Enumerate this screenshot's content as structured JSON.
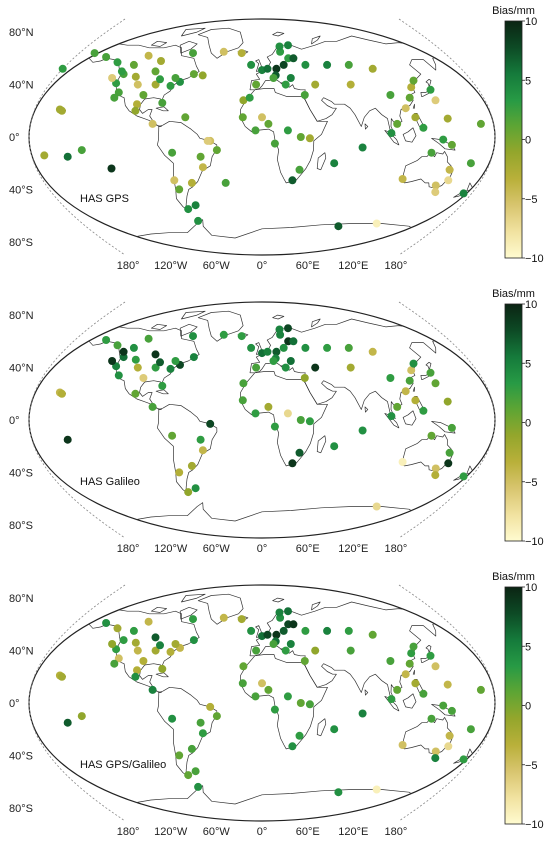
{
  "colorbar": {
    "title": "Bias/mm",
    "ticks": [
      "10",
      "5",
      "0",
      "−5",
      "−10"
    ],
    "min": -10,
    "max": 10,
    "stops": [
      "#fffbd0",
      "#f1e2a0",
      "#d8c56f",
      "#b9b03a",
      "#94a62c",
      "#5ea534",
      "#279a45",
      "#157a3b",
      "#0d4a25",
      "#0b2413"
    ]
  },
  "axis_labels": {
    "lat": [
      "80°N",
      "40°N",
      "0°",
      "40°S",
      "80°S"
    ],
    "lon": [
      "180°",
      "120°W",
      "60°W",
      "0°",
      "60°E",
      "120°E",
      "180°"
    ]
  },
  "panels": [
    {
      "label": "HAS GPS",
      "stations": [
        [
          -160,
          21,
          -2
        ],
        [
          -152,
          -15,
          6
        ],
        [
          -120,
          -24,
          9
        ],
        [
          -158,
          20,
          -2
        ],
        [
          -122,
          48,
          2
        ],
        [
          -118,
          34,
          2
        ],
        [
          -124,
          41,
          3
        ],
        [
          -110,
          46,
          -2
        ],
        [
          -97,
          32,
          1
        ],
        [
          -105,
          40,
          -5
        ],
        [
          -90,
          40,
          -2
        ],
        [
          -80,
          26,
          2
        ],
        [
          -77,
          39,
          3
        ],
        [
          -70,
          42,
          4
        ],
        [
          -88,
          44,
          3
        ],
        [
          -75,
          45,
          2
        ],
        [
          -95,
          50,
          1
        ],
        [
          -135,
          57,
          3
        ],
        [
          -150,
          61,
          2
        ],
        [
          -165,
          64,
          2
        ],
        [
          -110,
          62,
          -4
        ],
        [
          -95,
          58,
          -2
        ],
        [
          -68,
          64,
          2
        ],
        [
          -60,
          48,
          1
        ],
        [
          -52,
          47,
          -1
        ],
        [
          -118,
          55,
          1
        ],
        [
          -125,
          50,
          3
        ],
        [
          -130,
          45,
          -6
        ],
        [
          -100,
          25,
          -3
        ],
        [
          -100,
          20,
          -1
        ],
        [
          -85,
          10,
          -5
        ],
        [
          -60,
          15,
          1
        ],
        [
          -70,
          -12,
          2
        ],
        [
          -48,
          -15,
          1
        ],
        [
          -47,
          -23,
          -4
        ],
        [
          -58,
          -35,
          -3
        ],
        [
          -72,
          -33,
          -5
        ],
        [
          -70,
          -40,
          1
        ],
        [
          -60,
          -52,
          5
        ],
        [
          -68,
          -55,
          4
        ],
        [
          -40,
          -3,
          -5
        ],
        [
          -30,
          -35,
          2
        ],
        [
          -20,
          64,
          -3
        ],
        [
          -38,
          65,
          -5
        ],
        [
          -10,
          55,
          4
        ],
        [
          0,
          51,
          5
        ],
        [
          5,
          52,
          6
        ],
        [
          13,
          52,
          9
        ],
        [
          12,
          47,
          7
        ],
        [
          20,
          55,
          8
        ],
        [
          25,
          60,
          3
        ],
        [
          30,
          60,
          7
        ],
        [
          18,
          65,
          3
        ],
        [
          27,
          70,
          5
        ],
        [
          18,
          69,
          4
        ],
        [
          -5,
          40,
          1
        ],
        [
          -15,
          28,
          -1
        ],
        [
          10,
          45,
          2
        ],
        [
          20,
          40,
          3
        ],
        [
          25,
          45,
          5
        ],
        [
          40,
          55,
          4
        ],
        [
          60,
          55,
          5
        ],
        [
          35,
          32,
          2
        ],
        [
          45,
          40,
          -2
        ],
        [
          75,
          40,
          -3
        ],
        [
          80,
          55,
          2
        ],
        [
          100,
          52,
          -2
        ],
        [
          105,
          32,
          2
        ],
        [
          120,
          30,
          1
        ],
        [
          125,
          38,
          -3
        ],
        [
          130,
          43,
          1
        ],
        [
          140,
          36,
          3
        ],
        [
          140,
          28,
          -6
        ],
        [
          114,
          22,
          -5
        ],
        [
          120,
          15,
          -2
        ],
        [
          105,
          10,
          1
        ],
        [
          100,
          3,
          4
        ],
        [
          125,
          7,
          3
        ],
        [
          145,
          14,
          -2
        ],
        [
          147,
          -6,
          1
        ],
        [
          30,
          0,
          1
        ],
        [
          37,
          -1,
          -2
        ],
        [
          20,
          5,
          3
        ],
        [
          5,
          10,
          1
        ],
        [
          -5,
          5,
          2
        ],
        [
          -15,
          15,
          1
        ],
        [
          10,
          -5,
          2
        ],
        [
          30,
          -25,
          2
        ],
        [
          25,
          -33,
          7
        ],
        [
          57,
          -20,
          5
        ],
        [
          78,
          -8,
          5
        ],
        [
          115,
          -32,
          -4
        ],
        [
          132,
          -12,
          2
        ],
        [
          150,
          -25,
          -4
        ],
        [
          145,
          -37,
          -5
        ],
        [
          153,
          -33,
          -7
        ],
        [
          148,
          -42,
          -6
        ],
        [
          173,
          -43,
          5
        ],
        [
          -170,
          -14,
          -2
        ],
        [
          115,
          -66,
          -9
        ],
        [
          78,
          -68,
          7
        ],
        [
          -63,
          -64,
          4
        ],
        [
          0,
          15,
          -5
        ],
        [
          -35,
          -10,
          1
        ],
        [
          165,
          -20,
          2
        ],
        [
          140,
          -2,
          3
        ],
        [
          -42,
          -3,
          -6
        ],
        [
          -10,
          30,
          3
        ],
        [
          -120,
          30,
          2
        ],
        [
          -180,
          52,
          3
        ],
        [
          170,
          10,
          1
        ],
        [
          -140,
          -10,
          2
        ]
      ]
    },
    {
      "label": "HAS Galileo",
      "stations": [
        [
          -160,
          21,
          -4
        ],
        [
          -152,
          -15,
          9
        ],
        [
          -158,
          20,
          -3
        ],
        [
          -122,
          48,
          6
        ],
        [
          -124,
          41,
          5
        ],
        [
          -118,
          34,
          4
        ],
        [
          -110,
          46,
          3
        ],
        [
          -105,
          40,
          -3
        ],
        [
          -97,
          32,
          -6
        ],
        [
          -90,
          40,
          3
        ],
        [
          -80,
          26,
          3
        ],
        [
          -77,
          39,
          5
        ],
        [
          -70,
          42,
          8
        ],
        [
          -88,
          44,
          7
        ],
        [
          -95,
          50,
          9
        ],
        [
          -75,
          45,
          3
        ],
        [
          -135,
          57,
          2
        ],
        [
          -150,
          61,
          3
        ],
        [
          -110,
          62,
          2
        ],
        [
          -68,
          64,
          4
        ],
        [
          -60,
          48,
          5
        ],
        [
          -118,
          55,
          4
        ],
        [
          -130,
          45,
          9
        ],
        [
          -125,
          52,
          9
        ],
        [
          -100,
          20,
          1
        ],
        [
          -85,
          10,
          2
        ],
        [
          -70,
          -12,
          1
        ],
        [
          -48,
          -15,
          3
        ],
        [
          -47,
          -23,
          -4
        ],
        [
          -58,
          -35,
          -2
        ],
        [
          -70,
          -40,
          -3
        ],
        [
          -60,
          -52,
          4
        ],
        [
          -68,
          -55,
          -1
        ],
        [
          -40,
          -3,
          8
        ],
        [
          -20,
          64,
          3
        ],
        [
          -38,
          65,
          3
        ],
        [
          -10,
          55,
          4
        ],
        [
          0,
          51,
          6
        ],
        [
          5,
          52,
          5
        ],
        [
          13,
          52,
          7
        ],
        [
          12,
          47,
          5
        ],
        [
          20,
          55,
          4
        ],
        [
          25,
          60,
          9
        ],
        [
          30,
          60,
          6
        ],
        [
          18,
          65,
          5
        ],
        [
          27,
          70,
          8
        ],
        [
          18,
          69,
          5
        ],
        [
          -5,
          40,
          2
        ],
        [
          -15,
          28,
          2
        ],
        [
          10,
          45,
          3
        ],
        [
          20,
          40,
          4
        ],
        [
          25,
          45,
          6
        ],
        [
          40,
          55,
          4
        ],
        [
          60,
          55,
          3
        ],
        [
          35,
          32,
          -1
        ],
        [
          45,
          40,
          9
        ],
        [
          75,
          40,
          -2
        ],
        [
          80,
          55,
          2
        ],
        [
          100,
          52,
          -4
        ],
        [
          105,
          32,
          3
        ],
        [
          120,
          30,
          2
        ],
        [
          125,
          38,
          -5
        ],
        [
          130,
          43,
          4
        ],
        [
          140,
          36,
          2
        ],
        [
          140,
          28,
          1
        ],
        [
          114,
          22,
          -4
        ],
        [
          120,
          15,
          -3
        ],
        [
          105,
          10,
          1
        ],
        [
          100,
          3,
          4
        ],
        [
          125,
          7,
          3
        ],
        [
          145,
          14,
          -1
        ],
        [
          147,
          -6,
          2
        ],
        [
          30,
          0,
          2
        ],
        [
          37,
          -1,
          3
        ],
        [
          20,
          5,
          -7
        ],
        [
          5,
          10,
          -2
        ],
        [
          -5,
          5,
          3
        ],
        [
          -15,
          15,
          2
        ],
        [
          10,
          -5,
          3
        ],
        [
          30,
          -25,
          7
        ],
        [
          25,
          -33,
          9
        ],
        [
          57,
          -20,
          4
        ],
        [
          78,
          -8,
          4
        ],
        [
          115,
          -32,
          -9
        ],
        [
          132,
          -12,
          1
        ],
        [
          150,
          -25,
          2
        ],
        [
          145,
          -37,
          -5
        ],
        [
          153,
          -33,
          9
        ],
        [
          148,
          -42,
          -3
        ],
        [
          173,
          -43,
          3
        ],
        [
          115,
          -66,
          -7
        ]
      ]
    },
    {
      "label": "HAS GPS/Galileo",
      "stations": [
        [
          -160,
          21,
          -3
        ],
        [
          -152,
          -15,
          7
        ],
        [
          -158,
          20,
          -2
        ],
        [
          -140,
          -10,
          -1
        ],
        [
          -122,
          48,
          3
        ],
        [
          -124,
          41,
          3
        ],
        [
          -118,
          34,
          -5
        ],
        [
          -110,
          46,
          -2
        ],
        [
          -105,
          40,
          -4
        ],
        [
          -97,
          32,
          -3
        ],
        [
          -90,
          40,
          -2
        ],
        [
          -80,
          26,
          -1
        ],
        [
          -77,
          39,
          -3
        ],
        [
          -70,
          42,
          -4
        ],
        [
          -88,
          44,
          5
        ],
        [
          -95,
          50,
          7
        ],
        [
          -75,
          45,
          -2
        ],
        [
          -135,
          57,
          -2
        ],
        [
          -150,
          61,
          4
        ],
        [
          -110,
          62,
          -4
        ],
        [
          -68,
          64,
          3
        ],
        [
          -60,
          48,
          4
        ],
        [
          -118,
          55,
          3
        ],
        [
          -130,
          45,
          -1
        ],
        [
          -100,
          25,
          -3
        ],
        [
          -100,
          20,
          4
        ],
        [
          -85,
          10,
          5
        ],
        [
          -70,
          -12,
          4
        ],
        [
          -48,
          -15,
          2
        ],
        [
          -47,
          -23,
          3
        ],
        [
          -58,
          -35,
          2
        ],
        [
          -70,
          -40,
          1
        ],
        [
          -60,
          -52,
          2
        ],
        [
          -68,
          -55,
          1
        ],
        [
          -40,
          -3,
          -3
        ],
        [
          -20,
          64,
          -2
        ],
        [
          -38,
          65,
          -4
        ],
        [
          -10,
          55,
          4
        ],
        [
          0,
          51,
          6
        ],
        [
          5,
          52,
          8
        ],
        [
          13,
          52,
          9
        ],
        [
          12,
          47,
          6
        ],
        [
          20,
          55,
          7
        ],
        [
          25,
          60,
          8
        ],
        [
          30,
          60,
          9
        ],
        [
          18,
          65,
          4
        ],
        [
          27,
          70,
          6
        ],
        [
          18,
          69,
          5
        ],
        [
          -5,
          40,
          2
        ],
        [
          -15,
          28,
          1
        ],
        [
          10,
          45,
          2
        ],
        [
          20,
          40,
          3
        ],
        [
          25,
          45,
          5
        ],
        [
          40,
          55,
          3
        ],
        [
          60,
          55,
          5
        ],
        [
          35,
          32,
          1
        ],
        [
          45,
          40,
          -1
        ],
        [
          75,
          40,
          2
        ],
        [
          80,
          55,
          3
        ],
        [
          100,
          52,
          1
        ],
        [
          105,
          32,
          2
        ],
        [
          120,
          30,
          1
        ],
        [
          125,
          38,
          3
        ],
        [
          130,
          43,
          2
        ],
        [
          140,
          36,
          3
        ],
        [
          140,
          28,
          -5
        ],
        [
          114,
          22,
          -4
        ],
        [
          120,
          15,
          -2
        ],
        [
          105,
          10,
          1
        ],
        [
          100,
          3,
          3
        ],
        [
          125,
          7,
          2
        ],
        [
          145,
          14,
          -4
        ],
        [
          147,
          -6,
          2
        ],
        [
          30,
          0,
          1
        ],
        [
          37,
          -1,
          2
        ],
        [
          20,
          5,
          3
        ],
        [
          5,
          10,
          1
        ],
        [
          -5,
          5,
          2
        ],
        [
          -15,
          15,
          2
        ],
        [
          10,
          -5,
          3
        ],
        [
          30,
          -25,
          3
        ],
        [
          25,
          -33,
          4
        ],
        [
          57,
          -20,
          4
        ],
        [
          78,
          -8,
          5
        ],
        [
          115,
          -32,
          -5
        ],
        [
          132,
          -12,
          2
        ],
        [
          150,
          -25,
          -4
        ],
        [
          145,
          -37,
          -5
        ],
        [
          153,
          -33,
          -7
        ],
        [
          148,
          -42,
          5
        ],
        [
          173,
          -43,
          3
        ],
        [
          115,
          -66,
          -9
        ],
        [
          78,
          -68,
          4
        ],
        [
          -63,
          -64,
          4
        ],
        [
          0,
          15,
          -5
        ],
        [
          -35,
          -10,
          1
        ],
        [
          165,
          -20,
          2
        ],
        [
          140,
          -2,
          2
        ],
        [
          -120,
          30,
          2
        ],
        [
          170,
          10,
          1
        ]
      ]
    }
  ]
}
